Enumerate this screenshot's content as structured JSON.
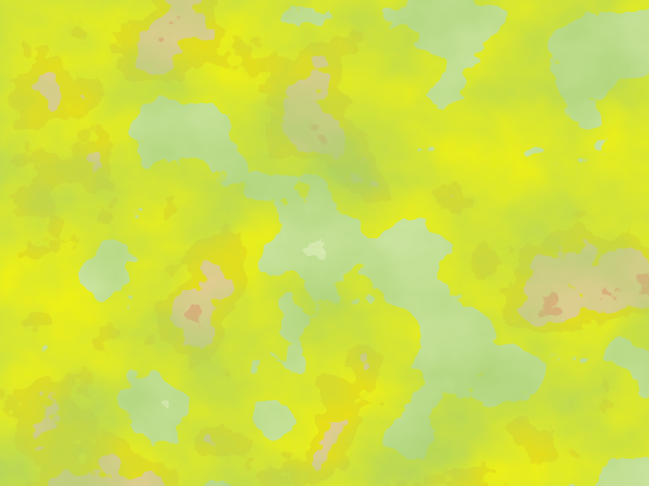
{
  "map": {
    "type": "procedural-heatmap-terrain",
    "style": "noise-contour-bands",
    "palette": {
      "lowest": "#f1f8c8",
      "low": "#e9f4b7",
      "mid_low": "#a8d06a",
      "mid": "#fff200",
      "mid_high": "#f1c700",
      "high": "#e39a57",
      "very_high": "#e25a3d",
      "peak": "#e4003c",
      "extreme": "#ff00c7"
    }
  }
}
